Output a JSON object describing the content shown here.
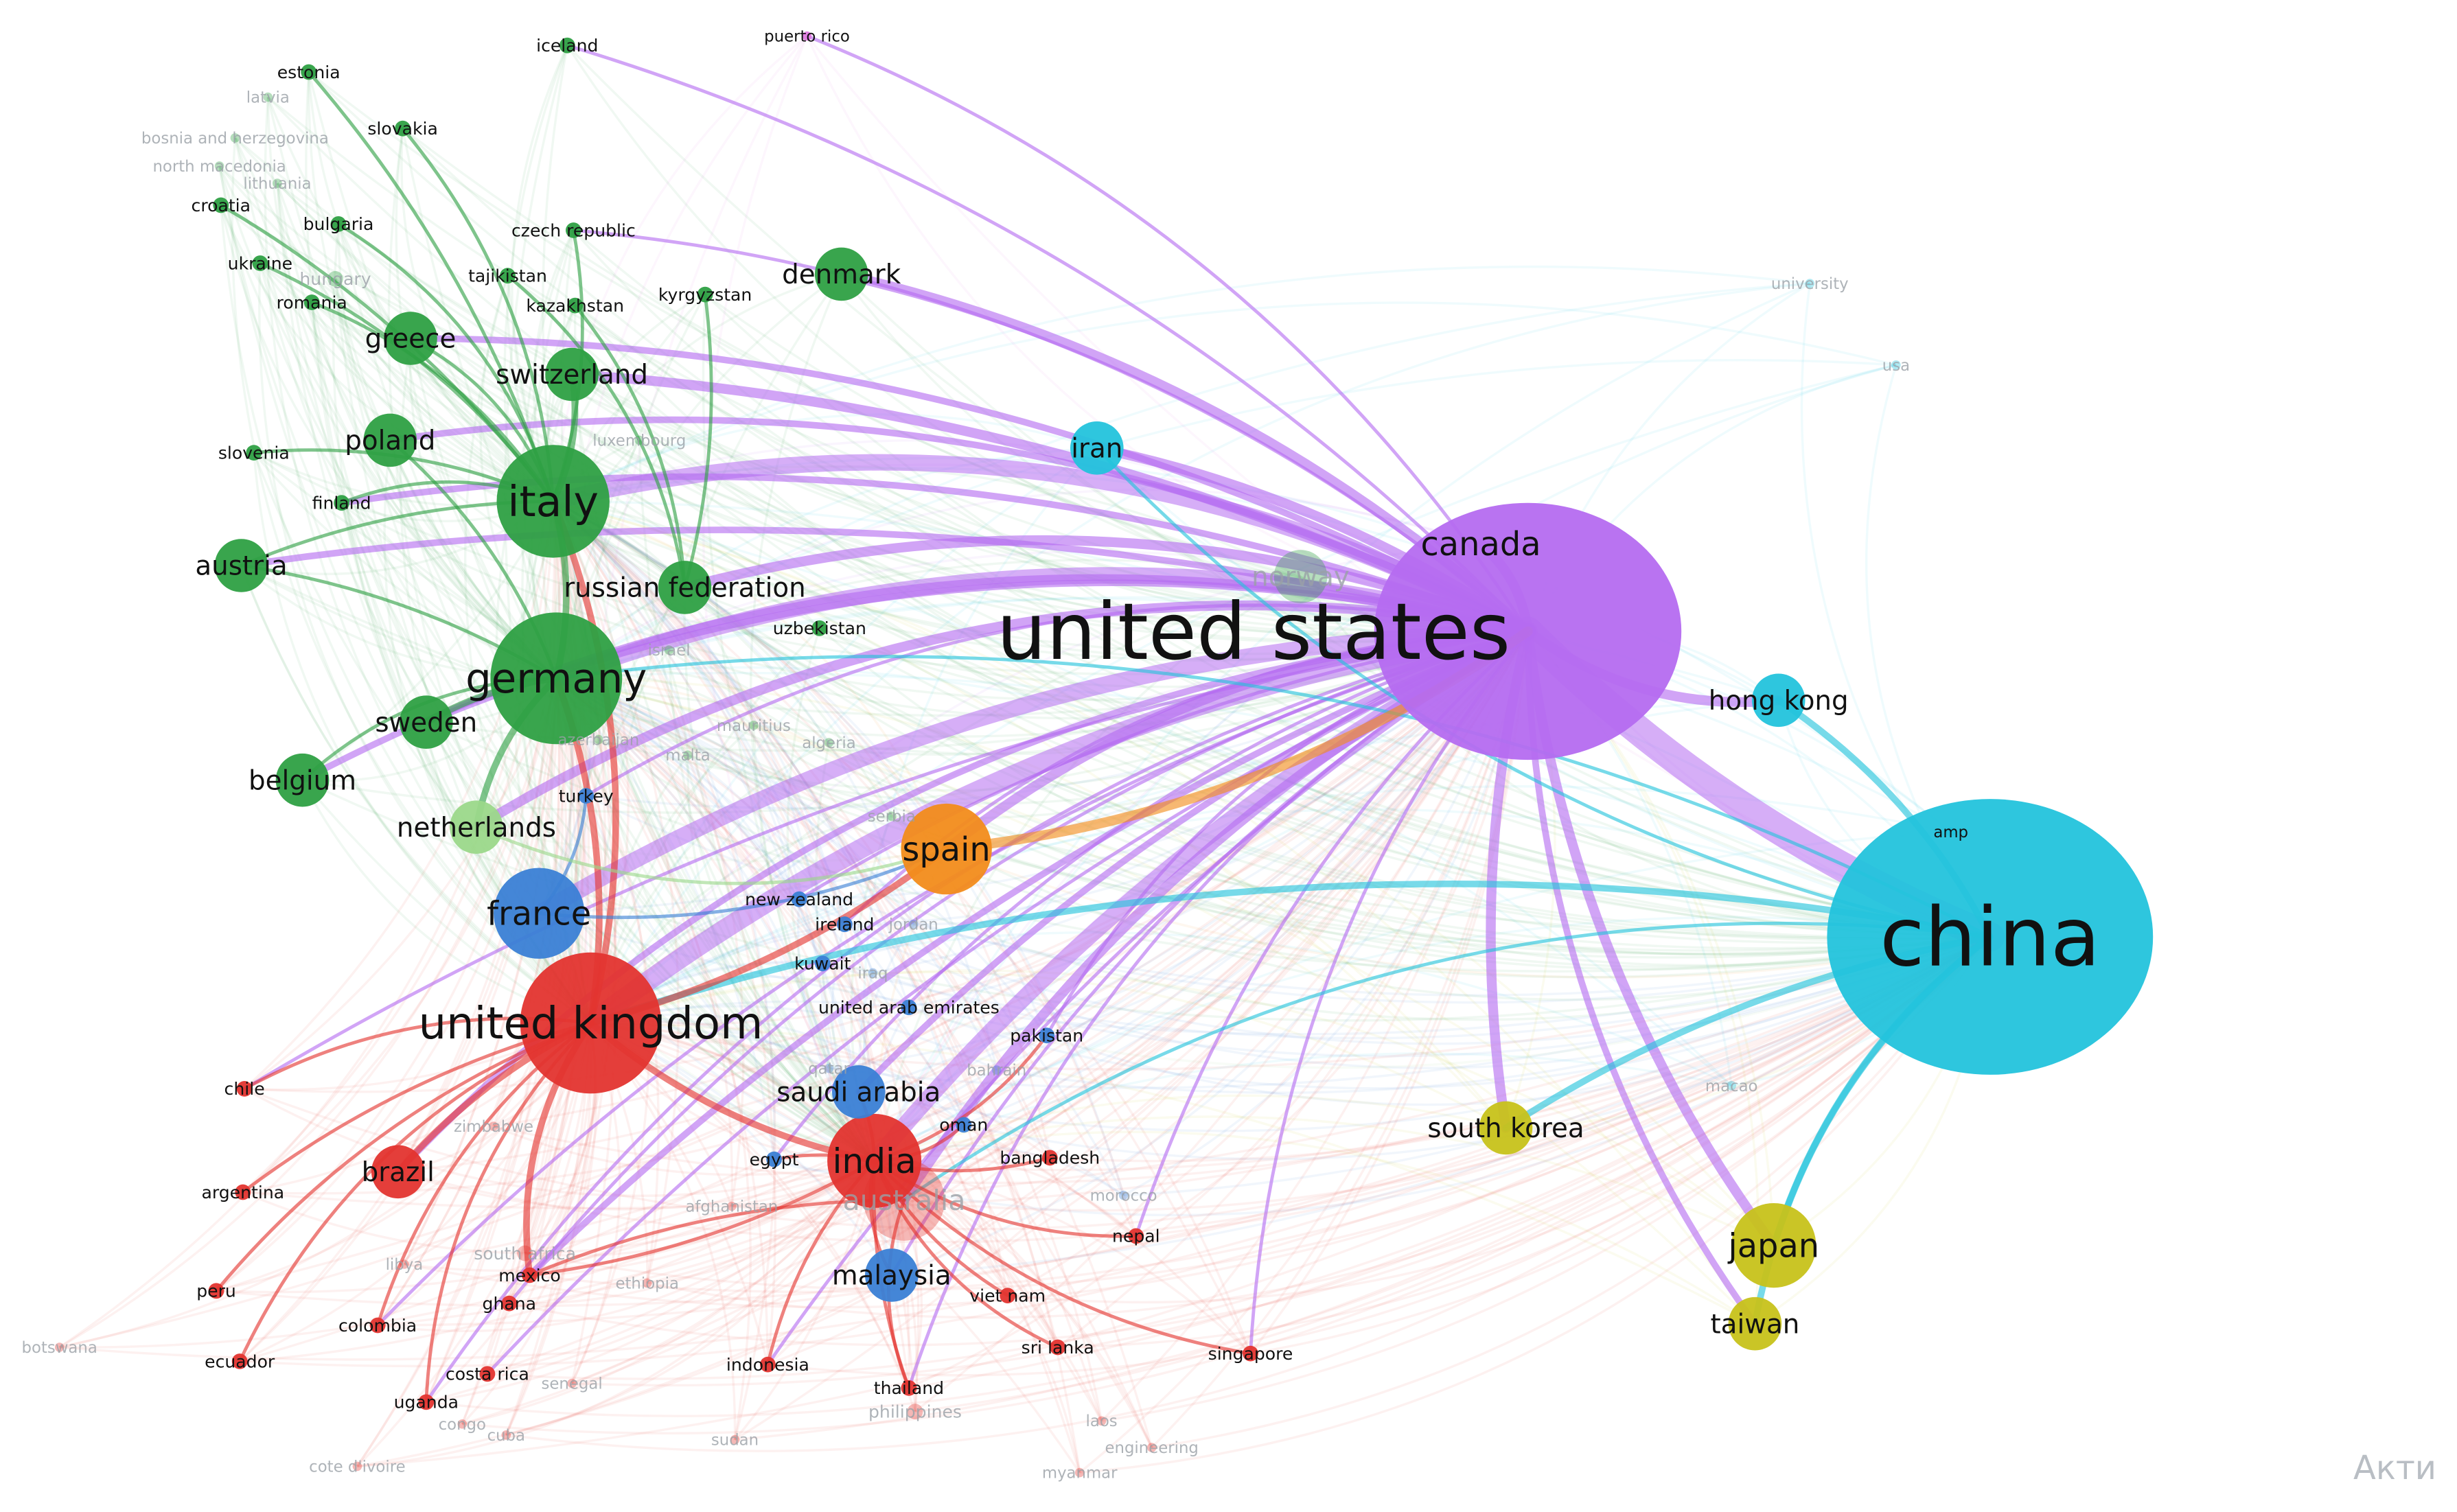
{
  "watermark": "Акти",
  "clusters": {
    "red": "#e3342f",
    "green": "#2ea043",
    "blue": "#3a7fd5",
    "yellow": "#c7c21a",
    "purple": "#b56cf0",
    "cyan": "#23c3dc",
    "orange": "#f28c1b",
    "pink": "#e07be0",
    "lightgreen": "#9bd88a"
  },
  "hubs": [
    "united states",
    "china",
    "united kingdom",
    "germany",
    "italy",
    "india"
  ],
  "nodes": [
    {
      "id": "united states",
      "cluster": "purple",
      "size": "xl",
      "faint": false
    },
    {
      "id": "canada",
      "cluster": "purple",
      "size": "label",
      "faint": false
    },
    {
      "id": "china",
      "cluster": "cyan",
      "size": "xl",
      "faint": false
    },
    {
      "id": "hong kong",
      "cluster": "cyan",
      "size": "s",
      "faint": false
    },
    {
      "id": "iran",
      "cluster": "cyan",
      "size": "s",
      "faint": false
    },
    {
      "id": "amp",
      "cluster": "cyan",
      "size": "tiny",
      "faint": false
    },
    {
      "id": "macao",
      "cluster": "cyan",
      "size": "tiny",
      "faint": true
    },
    {
      "id": "university",
      "cluster": "cyan",
      "size": "tiny",
      "faint": true
    },
    {
      "id": "usa",
      "cluster": "cyan",
      "size": "tiny",
      "faint": true
    },
    {
      "id": "united kingdom",
      "cluster": "red",
      "size": "l",
      "faint": false
    },
    {
      "id": "india",
      "cluster": "red",
      "size": "m",
      "faint": false
    },
    {
      "id": "australia",
      "cluster": "red",
      "size": "m",
      "faint": true
    },
    {
      "id": "brazil",
      "cluster": "red",
      "size": "s",
      "faint": false
    },
    {
      "id": "chile",
      "cluster": "red",
      "size": "xs",
      "faint": false
    },
    {
      "id": "argentina",
      "cluster": "red",
      "size": "xs",
      "faint": false
    },
    {
      "id": "peru",
      "cluster": "red",
      "size": "xs",
      "faint": false
    },
    {
      "id": "mexico",
      "cluster": "red",
      "size": "xs",
      "faint": false
    },
    {
      "id": "south africa",
      "cluster": "red",
      "size": "xs",
      "faint": true
    },
    {
      "id": "ghana",
      "cluster": "red",
      "size": "xs",
      "faint": false
    },
    {
      "id": "colombia",
      "cluster": "red",
      "size": "xs",
      "faint": false
    },
    {
      "id": "ecuador",
      "cluster": "red",
      "size": "xs",
      "faint": false
    },
    {
      "id": "costa rica",
      "cluster": "red",
      "size": "xs",
      "faint": false
    },
    {
      "id": "uganda",
      "cluster": "red",
      "size": "xs",
      "faint": false
    },
    {
      "id": "indonesia",
      "cluster": "red",
      "size": "xs",
      "faint": false
    },
    {
      "id": "thailand",
      "cluster": "red",
      "size": "xs",
      "faint": false
    },
    {
      "id": "philippines",
      "cluster": "red",
      "size": "xs",
      "faint": true
    },
    {
      "id": "singapore",
      "cluster": "red",
      "size": "xs",
      "faint": false
    },
    {
      "id": "sri lanka",
      "cluster": "red",
      "size": "xs",
      "faint": false
    },
    {
      "id": "viet nam",
      "cluster": "red",
      "size": "xs",
      "faint": false
    },
    {
      "id": "nepal",
      "cluster": "red",
      "size": "xs",
      "faint": false
    },
    {
      "id": "bangladesh",
      "cluster": "red",
      "size": "xs",
      "faint": false
    },
    {
      "id": "zimbabwe",
      "cluster": "red",
      "size": "tiny",
      "faint": true
    },
    {
      "id": "libya",
      "cluster": "red",
      "size": "tiny",
      "faint": true
    },
    {
      "id": "ethiopia",
      "cluster": "red",
      "size": "tiny",
      "faint": true
    },
    {
      "id": "afghanistan",
      "cluster": "red",
      "size": "tiny",
      "faint": true
    },
    {
      "id": "botswana",
      "cluster": "red",
      "size": "tiny",
      "faint": true
    },
    {
      "id": "senegal",
      "cluster": "red",
      "size": "tiny",
      "faint": true
    },
    {
      "id": "congo",
      "cluster": "red",
      "size": "tiny",
      "faint": true
    },
    {
      "id": "cuba",
      "cluster": "red",
      "size": "tiny",
      "faint": true
    },
    {
      "id": "cote d'ivoire",
      "cluster": "red",
      "size": "tiny",
      "faint": true
    },
    {
      "id": "sudan",
      "cluster": "red",
      "size": "tiny",
      "faint": true
    },
    {
      "id": "laos",
      "cluster": "red",
      "size": "tiny",
      "faint": true
    },
    {
      "id": "engineering",
      "cluster": "red",
      "size": "tiny",
      "faint": true
    },
    {
      "id": "myanmar",
      "cluster": "red",
      "size": "tiny",
      "faint": true
    },
    {
      "id": "morocco",
      "cluster": "blue",
      "size": "tiny",
      "faint": true
    },
    {
      "id": "france",
      "cluster": "blue",
      "size": "m",
      "faint": false
    },
    {
      "id": "turkey",
      "cluster": "blue",
      "size": "xs",
      "faint": false
    },
    {
      "id": "new zealand",
      "cluster": "blue",
      "size": "xs",
      "faint": false
    },
    {
      "id": "ireland",
      "cluster": "blue",
      "size": "xs",
      "faint": false
    },
    {
      "id": "jordan",
      "cluster": "blue",
      "size": "tiny",
      "faint": true
    },
    {
      "id": "kuwait",
      "cluster": "blue",
      "size": "xs",
      "faint": false
    },
    {
      "id": "iraq",
      "cluster": "blue",
      "size": "tiny",
      "faint": true
    },
    {
      "id": "united arab emirates",
      "cluster": "blue",
      "size": "xs",
      "faint": false
    },
    {
      "id": "pakistan",
      "cluster": "blue",
      "size": "xs",
      "faint": false
    },
    {
      "id": "qatar",
      "cluster": "blue",
      "size": "tiny",
      "faint": true
    },
    {
      "id": "bahrain",
      "cluster": "blue",
      "size": "tiny",
      "faint": true
    },
    {
      "id": "saudi arabia",
      "cluster": "blue",
      "size": "s",
      "faint": false
    },
    {
      "id": "oman",
      "cluster": "blue",
      "size": "xs",
      "faint": false
    },
    {
      "id": "egypt",
      "cluster": "blue",
      "size": "xs",
      "faint": false
    },
    {
      "id": "malaysia",
      "cluster": "blue",
      "size": "s",
      "faint": false
    },
    {
      "id": "spain",
      "cluster": "orange",
      "size": "m",
      "faint": false
    },
    {
      "id": "south korea",
      "cluster": "yellow",
      "size": "s",
      "faint": false
    },
    {
      "id": "japan",
      "cluster": "yellow",
      "size": "m",
      "faint": false
    },
    {
      "id": "taiwan",
      "cluster": "yellow",
      "size": "s",
      "faint": false
    },
    {
      "id": "puerto rico",
      "cluster": "pink",
      "size": "tiny",
      "faint": false
    },
    {
      "id": "germany",
      "cluster": "green",
      "size": "l",
      "faint": false
    },
    {
      "id": "italy",
      "cluster": "green",
      "size": "m",
      "faint": false
    },
    {
      "id": "russian federation",
      "cluster": "green",
      "size": "s",
      "faint": false
    },
    {
      "id": "norway",
      "cluster": "green",
      "size": "s",
      "faint": true
    },
    {
      "id": "denmark",
      "cluster": "green",
      "size": "s",
      "faint": false
    },
    {
      "id": "switzerland",
      "cluster": "green",
      "size": "s",
      "faint": false
    },
    {
      "id": "greece",
      "cluster": "green",
      "size": "s",
      "faint": false
    },
    {
      "id": "poland",
      "cluster": "green",
      "size": "s",
      "faint": false
    },
    {
      "id": "finland",
      "cluster": "green",
      "size": "xs",
      "faint": false
    },
    {
      "id": "austria",
      "cluster": "green",
      "size": "s",
      "faint": false
    },
    {
      "id": "sweden",
      "cluster": "green",
      "size": "s",
      "faint": false
    },
    {
      "id": "belgium",
      "cluster": "green",
      "size": "s",
      "faint": false
    },
    {
      "id": "slovenia",
      "cluster": "green",
      "size": "xs",
      "faint": false
    },
    {
      "id": "netherlands",
      "cluster": "lightgreen",
      "size": "s",
      "faint": false
    },
    {
      "id": "czech republic",
      "cluster": "green",
      "size": "xs",
      "faint": false
    },
    {
      "id": "kyrgyzstan",
      "cluster": "green",
      "size": "xs",
      "faint": false
    },
    {
      "id": "tajikistan",
      "cluster": "green",
      "size": "xs",
      "faint": false
    },
    {
      "id": "kazakhstan",
      "cluster": "green",
      "size": "xs",
      "faint": false
    },
    {
      "id": "uzbekistan",
      "cluster": "green",
      "size": "xs",
      "faint": false
    },
    {
      "id": "iceland",
      "cluster": "green",
      "size": "xs",
      "faint": false
    },
    {
      "id": "estonia",
      "cluster": "green",
      "size": "xs",
      "faint": false
    },
    {
      "id": "latvia",
      "cluster": "green",
      "size": "tiny",
      "faint": true
    },
    {
      "id": "bosnia and herzegovina",
      "cluster": "green",
      "size": "tiny",
      "faint": true
    },
    {
      "id": "north macedonia",
      "cluster": "green",
      "size": "tiny",
      "faint": true
    },
    {
      "id": "lithuania",
      "cluster": "green",
      "size": "tiny",
      "faint": true
    },
    {
      "id": "croatia",
      "cluster": "green",
      "size": "xs",
      "faint": false
    },
    {
      "id": "bulgaria",
      "cluster": "green",
      "size": "xs",
      "faint": false
    },
    {
      "id": "ukraine",
      "cluster": "green",
      "size": "xs",
      "faint": false
    },
    {
      "id": "hungary",
      "cluster": "green",
      "size": "xs",
      "faint": true
    },
    {
      "id": "romania",
      "cluster": "green",
      "size": "xs",
      "faint": false
    },
    {
      "id": "slovakia",
      "cluster": "green",
      "size": "xs",
      "faint": false
    },
    {
      "id": "luxembourg",
      "cluster": "green",
      "size": "tiny",
      "faint": true
    },
    {
      "id": "israel",
      "cluster": "green",
      "size": "tiny",
      "faint": true
    },
    {
      "id": "azerbaijan",
      "cluster": "green",
      "size": "tiny",
      "faint": true
    },
    {
      "id": "malta",
      "cluster": "green",
      "size": "tiny",
      "faint": true
    },
    {
      "id": "mauritius",
      "cluster": "green",
      "size": "tiny",
      "faint": true
    },
    {
      "id": "algeria",
      "cluster": "green",
      "size": "tiny",
      "faint": true
    },
    {
      "id": "serbia",
      "cluster": "green",
      "size": "tiny",
      "faint": true
    }
  ],
  "links": [
    [
      "united states",
      "china",
      9
    ],
    [
      "united states",
      "united kingdom",
      6
    ],
    [
      "united states",
      "germany",
      5
    ],
    [
      "united states",
      "italy",
      5
    ],
    [
      "united states",
      "india",
      5
    ],
    [
      "united states",
      "france",
      5
    ],
    [
      "united states",
      "spain",
      3
    ],
    [
      "united states",
      "canada",
      3
    ],
    [
      "united states",
      "south korea",
      3
    ],
    [
      "united states",
      "japan",
      3
    ],
    [
      "united states",
      "taiwan",
      2
    ],
    [
      "united states",
      "hong kong",
      3
    ],
    [
      "united states",
      "iran",
      3
    ],
    [
      "united states",
      "australia",
      3
    ],
    [
      "united states",
      "russian federation",
      3
    ],
    [
      "united states",
      "netherlands",
      3
    ],
    [
      "united states",
      "switzerland",
      3
    ],
    [
      "united states",
      "denmark",
      3
    ],
    [
      "united states",
      "sweden",
      2
    ],
    [
      "united states",
      "brazil",
      2
    ],
    [
      "united states",
      "mexico",
      2
    ],
    [
      "united states",
      "greece",
      2
    ],
    [
      "united states",
      "poland",
      2
    ],
    [
      "united states",
      "belgium",
      2
    ],
    [
      "united states",
      "austria",
      2
    ],
    [
      "united states",
      "finland",
      2
    ],
    [
      "united states",
      "puerto rico",
      1
    ],
    [
      "united states",
      "pakistan",
      1
    ],
    [
      "united states",
      "saudi arabia",
      2
    ],
    [
      "united states",
      "malaysia",
      1
    ],
    [
      "united states",
      "singapore",
      1
    ],
    [
      "united states",
      "thailand",
      1
    ],
    [
      "united states",
      "indonesia",
      1
    ],
    [
      "united states",
      "iceland",
      1
    ],
    [
      "united states",
      "czech republic",
      1
    ],
    [
      "united states",
      "turkey",
      1
    ],
    [
      "united states",
      "chile",
      1
    ],
    [
      "united states",
      "colombia",
      1
    ],
    [
      "united states",
      "ghana",
      1
    ],
    [
      "united states",
      "uganda",
      1
    ],
    [
      "united states",
      "costa rica",
      1
    ],
    [
      "united states",
      "nepal",
      1
    ],
    [
      "united states",
      "egypt",
      1
    ],
    [
      "united states",
      "ireland",
      1
    ],
    [
      "united states",
      "new zealand",
      1
    ],
    [
      "china",
      "hong kong",
      2
    ],
    [
      "china",
      "japan",
      2
    ],
    [
      "china",
      "taiwan",
      2
    ],
    [
      "china",
      "south korea",
      2
    ],
    [
      "china",
      "united kingdom",
      2
    ],
    [
      "china",
      "germany",
      1
    ],
    [
      "china",
      "australia",
      1
    ],
    [
      "united kingdom",
      "brazil",
      2
    ],
    [
      "united kingdom",
      "india",
      2
    ],
    [
      "united kingdom",
      "chile",
      1
    ],
    [
      "united kingdom",
      "mexico",
      2
    ],
    [
      "united kingdom",
      "argentina",
      1
    ],
    [
      "united kingdom",
      "peru",
      1
    ],
    [
      "united kingdom",
      "colombia",
      1
    ],
    [
      "united kingdom",
      "uganda",
      1
    ],
    [
      "united kingdom",
      "spain",
      2
    ],
    [
      "united kingdom",
      "germany",
      2
    ],
    [
      "united kingdom",
      "italy",
      2
    ],
    [
      "united kingdom",
      "ecuador",
      1
    ],
    [
      "germany",
      "sweden",
      2
    ],
    [
      "germany",
      "italy",
      2
    ],
    [
      "germany",
      "netherlands",
      2
    ],
    [
      "germany",
      "belgium",
      1
    ],
    [
      "germany",
      "austria",
      1
    ],
    [
      "germany",
      "poland",
      1
    ],
    [
      "italy",
      "switzerland",
      2
    ],
    [
      "italy",
      "greece",
      1
    ],
    [
      "italy",
      "croatia",
      1
    ],
    [
      "italy",
      "slovenia",
      1
    ],
    [
      "italy",
      "romania",
      1
    ],
    [
      "italy",
      "bulgaria",
      1
    ],
    [
      "italy",
      "estonia",
      1
    ],
    [
      "italy",
      "ukraine",
      1
    ],
    [
      "italy",
      "slovakia",
      1
    ],
    [
      "italy",
      "finland",
      1
    ],
    [
      "italy",
      "austria",
      1
    ],
    [
      "italy",
      "czech republic",
      1
    ],
    [
      "russian federation",
      "kazakhstan",
      1
    ],
    [
      "russian federation",
      "tajikistan",
      1
    ],
    [
      "russian federation",
      "kyrgyzstan",
      1
    ],
    [
      "france",
      "spain",
      1
    ],
    [
      "france",
      "turkey",
      1
    ],
    [
      "india",
      "malaysia",
      1
    ],
    [
      "india",
      "saudi arabia",
      1
    ],
    [
      "india",
      "bangladesh",
      1
    ],
    [
      "india",
      "nepal",
      1
    ],
    [
      "india",
      "sri lanka",
      1
    ],
    [
      "india",
      "thailand",
      1
    ],
    [
      "india",
      "indonesia",
      1
    ],
    [
      "india",
      "pakistan",
      1
    ],
    [
      "india",
      "oman",
      1
    ],
    [
      "india",
      "egypt",
      1
    ],
    [
      "india",
      "viet nam",
      1
    ],
    [
      "india",
      "singapore",
      1
    ],
    [
      "australia",
      "thailand",
      1
    ],
    [
      "australia",
      "mexico",
      1
    ],
    [
      "spain",
      "united states",
      3
    ],
    [
      "iran",
      "china",
      1
    ],
    [
      "netherlands",
      "spain",
      1
    ],
    [
      "mexico",
      "india",
      1
    ]
  ]
}
